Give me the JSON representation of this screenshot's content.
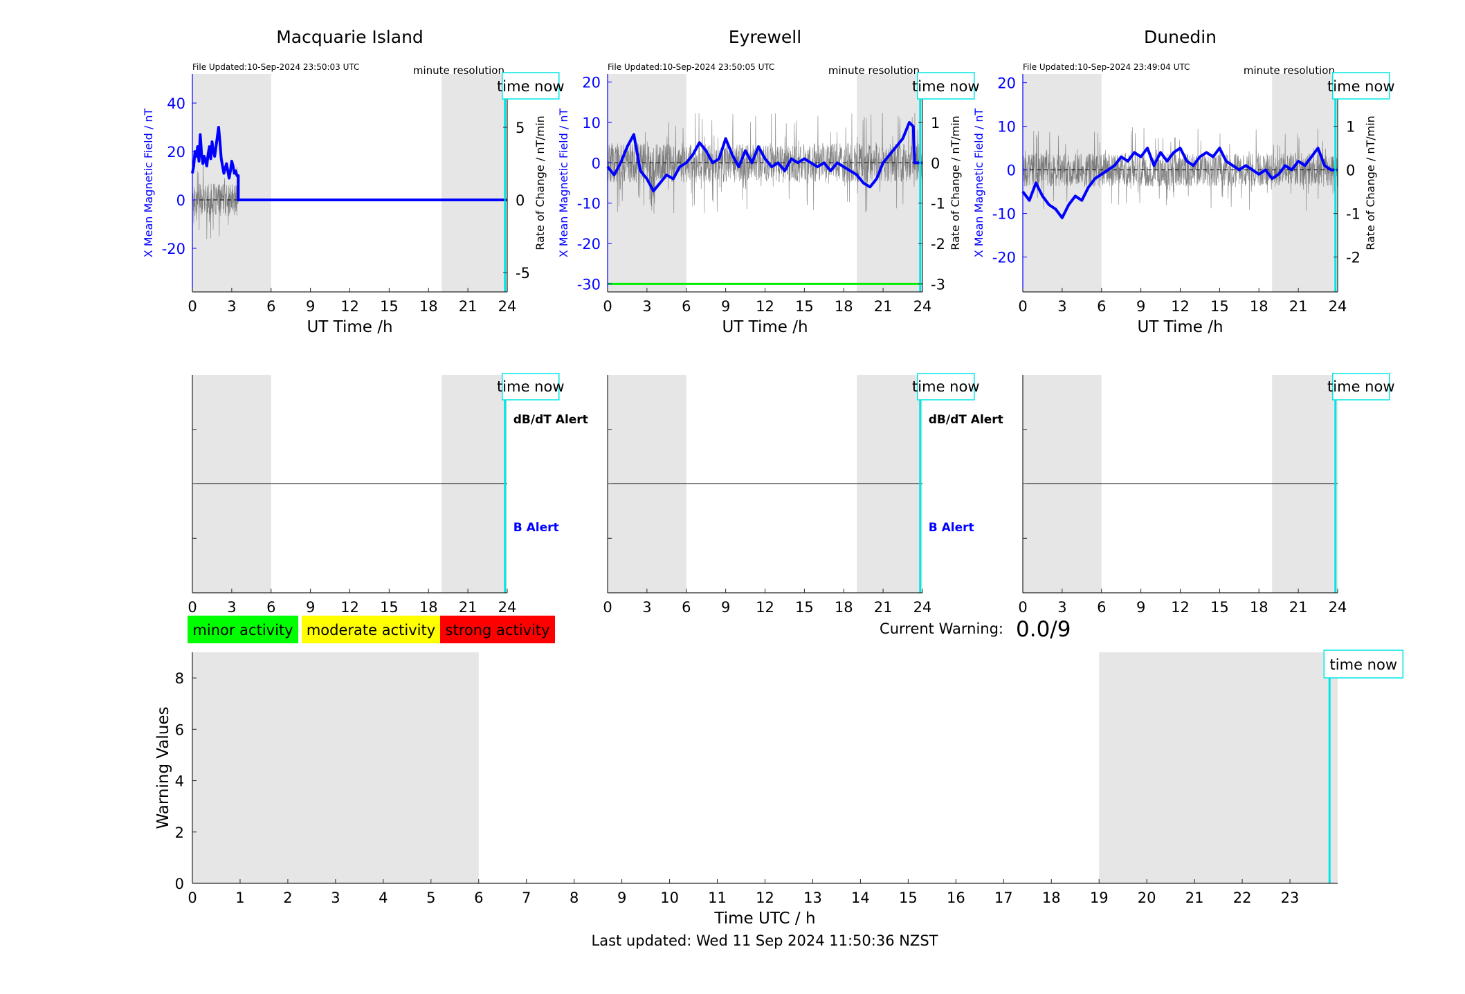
{
  "colors": {
    "x_field": "#0000ff",
    "rate": "#555555",
    "shade": "#e6e6e6",
    "time_now": "#00e5e5",
    "minor": "#00ff00",
    "moderate": "#ffff00",
    "strong": "#ff0000",
    "axis": "#262626"
  },
  "panel_labels": {
    "file_prefix": "File Updated:",
    "resolution": "minute resolution",
    "time_now": "time now",
    "ut_xlabel": "UT Time /h",
    "y_left": "X Mean Magnetic Field / nT",
    "y_right": "Rate of Change / nT/min",
    "dbdt_alert": "dB/dT Alert",
    "b_alert": "B Alert"
  },
  "stations": [
    {
      "name": "Macquarie Island",
      "file_updated": "10-Sep-2024 23:50:03 UTC",
      "has_alert_labels": true,
      "chart_data": {
        "type": "line",
        "title": "Macquarie Island",
        "xlabel": "UT Time /h",
        "ylabel": "X Mean Magnetic Field / nT",
        "ylabel_right": "Rate of Change / nT/min",
        "xlim": [
          0,
          24
        ],
        "ylim": [
          -38,
          52
        ],
        "ylim_right": [
          -6.333,
          8.667
        ],
        "yticks": [
          -20,
          0,
          20,
          40
        ],
        "yticks_right": [
          -5,
          0,
          5
        ],
        "xticks": [
          0,
          3,
          6,
          9,
          12,
          15,
          18,
          21,
          24
        ],
        "shaded_ut_ranges": [
          [
            0,
            6
          ],
          [
            19,
            24
          ]
        ],
        "time_now_h": 23.83,
        "series": [
          {
            "name": "X Mean Magnetic Field / nT",
            "x": [
              0,
              0.1,
              0.2,
              0.3,
              0.4,
              0.5,
              0.6,
              0.7,
              0.8,
              0.9,
              1.0,
              1.1,
              1.2,
              1.3,
              1.4,
              1.5,
              1.6,
              1.7,
              1.8,
              1.9,
              2.0,
              2.1,
              2.2,
              2.3,
              2.4,
              2.5,
              2.6,
              2.7,
              2.8,
              2.9,
              3.0,
              3.1,
              3.2,
              3.3,
              3.4,
              3.5,
              3.5,
              24
            ],
            "values": [
              11,
              14,
              20,
              18,
              22,
              16,
              27,
              19,
              15,
              18,
              16,
              14,
              19,
              22,
              17,
              24,
              20,
              18,
              22,
              26,
              30,
              24,
              17,
              14,
              11,
              13,
              15,
              12,
              9,
              12,
              16,
              14,
              11,
              12,
              10,
              10,
              0,
              0
            ]
          }
        ],
        "rate_band": {
          "x_start": 0,
          "x_end": 3.5,
          "amplitude": 1.6
        }
      }
    },
    {
      "name": "Eyrewell",
      "file_updated": "10-Sep-2024 23:50:05 UTC",
      "has_alert_labels": true,
      "chart_data": {
        "type": "line",
        "title": "Eyrewell",
        "xlabel": "UT Time /h",
        "ylabel": "X Mean Magnetic Field / nT",
        "ylabel_right": "Rate of Change / nT/min",
        "xlim": [
          0,
          24
        ],
        "ylim": [
          -32,
          22
        ],
        "ylim_right": [
          -3.2,
          2.2
        ],
        "yticks": [
          -30,
          -20,
          -10,
          0,
          10,
          20
        ],
        "yticks_right": [
          -3,
          -2,
          -1,
          0,
          1,
          2
        ],
        "xticks": [
          0,
          3,
          6,
          9,
          12,
          15,
          18,
          21,
          24
        ],
        "shaded_ut_ranges": [
          [
            0,
            6
          ],
          [
            19,
            24
          ]
        ],
        "time_now_h": 23.83,
        "threshold_line": {
          "value": -30,
          "color": "#00ee00"
        },
        "series": [
          {
            "name": "X Mean Magnetic Field / nT",
            "x": [
              0,
              0.5,
              1,
              1.5,
              2,
              2.5,
              3,
              3.5,
              4,
              4.5,
              5,
              5.5,
              6,
              6.5,
              7,
              7.5,
              8,
              8.5,
              9,
              9.5,
              10,
              10.5,
              11,
              11.5,
              12,
              12.5,
              13,
              13.5,
              14,
              14.5,
              15,
              15.5,
              16,
              16.5,
              17,
              17.5,
              18,
              18.5,
              19,
              19.5,
              20,
              20.5,
              21,
              21.5,
              22,
              22.5,
              23,
              23.3,
              23.4,
              24
            ],
            "values": [
              -1,
              -3,
              0,
              4,
              7,
              -2,
              -4,
              -7,
              -5,
              -3,
              -4,
              -1,
              0,
              2,
              5,
              3,
              0,
              1,
              6,
              2,
              -1,
              3,
              0,
              4,
              1,
              -1,
              0,
              -2,
              1,
              0,
              1,
              0,
              -1,
              0,
              -2,
              0,
              -1,
              -2,
              -3,
              -5,
              -6,
              -4,
              0,
              2,
              4,
              6,
              10,
              9,
              0,
              0
            ]
          }
        ],
        "rate_band": {
          "x_start": 0,
          "x_end": 24,
          "amplitude": 0.7
        }
      }
    },
    {
      "name": "Dunedin",
      "file_updated": "10-Sep-2024 23:49:04 UTC",
      "has_alert_labels": false,
      "chart_data": {
        "type": "line",
        "title": "Dunedin",
        "xlabel": "UT Time /h",
        "ylabel": "X Mean Magnetic Field / nT",
        "ylabel_right": "Rate of Change / nT/min",
        "xlim": [
          0,
          24
        ],
        "ylim": [
          -28,
          22
        ],
        "ylim_right": [
          -2.8,
          2.2
        ],
        "yticks": [
          -20,
          -10,
          0,
          10,
          20
        ],
        "yticks_right": [
          -2,
          -1,
          0,
          1,
          2
        ],
        "xticks": [
          0,
          3,
          6,
          9,
          12,
          15,
          18,
          21,
          24
        ],
        "shaded_ut_ranges": [
          [
            0,
            6
          ],
          [
            19,
            24
          ]
        ],
        "time_now_h": 23.83,
        "series": [
          {
            "name": "X Mean Magnetic Field / nT",
            "x": [
              0,
              0.5,
              1,
              1.5,
              2,
              2.5,
              3,
              3.5,
              4,
              4.5,
              5,
              5.5,
              6,
              6.5,
              7,
              7.5,
              8,
              8.5,
              9,
              9.5,
              10,
              10.5,
              11,
              11.5,
              12,
              12.5,
              13,
              13.5,
              14,
              14.5,
              15,
              15.5,
              16,
              16.5,
              17,
              17.5,
              18,
              18.5,
              19,
              19.5,
              20,
              20.5,
              21,
              21.5,
              22,
              22.5,
              23,
              23.5,
              24
            ],
            "values": [
              -5,
              -7,
              -3,
              -6,
              -8,
              -9,
              -11,
              -8,
              -6,
              -7,
              -4,
              -2,
              -1,
              0,
              1,
              3,
              2,
              4,
              3,
              5,
              1,
              4,
              2,
              4,
              5,
              2,
              1,
              3,
              4,
              3,
              5,
              2,
              1,
              0,
              1,
              0,
              -1,
              0,
              -2,
              -1,
              1,
              0,
              2,
              1,
              3,
              5,
              1,
              0,
              0
            ]
          }
        ],
        "rate_band": {
          "x_start": 0,
          "x_end": 24,
          "amplitude": 0.55
        }
      }
    }
  ],
  "legend": {
    "minor": "minor activity",
    "moderate": "moderate activity",
    "strong": "strong activity"
  },
  "current_warning": {
    "label": "Current Warning:",
    "value": "0.0/9"
  },
  "warning_chart": {
    "chart_data": {
      "type": "bar",
      "xlabel": "Time UTC / h",
      "ylabel": "Warning Values",
      "xlim": [
        0,
        24
      ],
      "ylim": [
        0,
        9
      ],
      "xticks": [
        0,
        1,
        2,
        3,
        4,
        5,
        6,
        7,
        8,
        9,
        10,
        11,
        12,
        13,
        14,
        15,
        16,
        17,
        18,
        19,
        20,
        21,
        22,
        23
      ],
      "yticks": [
        0,
        2,
        4,
        6,
        8
      ],
      "shaded_ut_ranges": [
        [
          0,
          6
        ],
        [
          19,
          24
        ]
      ],
      "time_now_h": 23.83,
      "values": []
    }
  },
  "last_updated": "Last updated: Wed 11 Sep 2024 11:50:36 NZST"
}
